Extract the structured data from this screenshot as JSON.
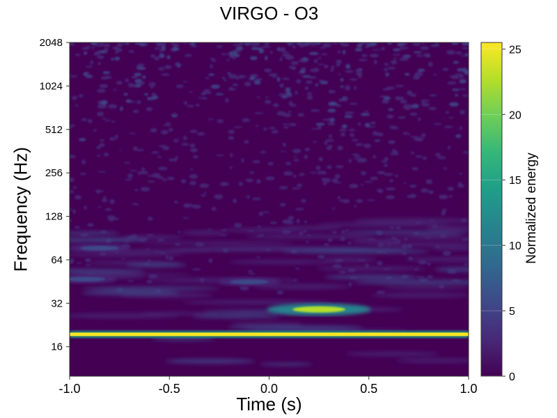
{
  "chart_data": {
    "type": "heatmap",
    "title": "VIRGO - O3",
    "xlabel": "Time (s)",
    "ylabel": "Frequency (Hz)",
    "xlim": [
      -1.0,
      1.0
    ],
    "ylim": [
      10,
      2048
    ],
    "yscale": "log2",
    "x_ticks": [
      -1.0,
      -0.5,
      0.0,
      0.5,
      1.0
    ],
    "x_tick_labels": [
      "-1.0",
      "-0.5",
      "0.0",
      "0.5",
      "1.0"
    ],
    "y_ticks": [
      16,
      32,
      64,
      128,
      256,
      512,
      1024,
      2048
    ],
    "y_tick_labels": [
      "16",
      "32",
      "64",
      "128",
      "256",
      "512",
      "1024",
      "2048"
    ],
    "colorbar": {
      "label": "Normalized energy",
      "range": [
        0,
        25.5
      ],
      "ticks": [
        0,
        5,
        10,
        15,
        20,
        25
      ],
      "tick_labels": [
        "0",
        "5",
        "10",
        "15",
        "20",
        "25"
      ],
      "colormap": [
        "#440154",
        "#482878",
        "#3e4989",
        "#31688e",
        "#26828e",
        "#1f9e89",
        "#35b779",
        "#6ece58",
        "#b5de2b",
        "#fde725"
      ]
    },
    "features": [
      {
        "shape": "horizontal-line",
        "frequency": 19.5,
        "t_start": -1.0,
        "t_end": 1.0,
        "energy": 25
      },
      {
        "shape": "blob",
        "time": 0.25,
        "frequency": 29,
        "energy": 24
      },
      {
        "shape": "blob",
        "time": -0.92,
        "frequency": 47,
        "energy": 7
      },
      {
        "shape": "blob",
        "time": -0.85,
        "frequency": 77,
        "energy": 6
      },
      {
        "shape": "blob",
        "time": -0.1,
        "frequency": 45,
        "energy": 5
      }
    ],
    "background_energy": [
      0,
      6
    ]
  }
}
